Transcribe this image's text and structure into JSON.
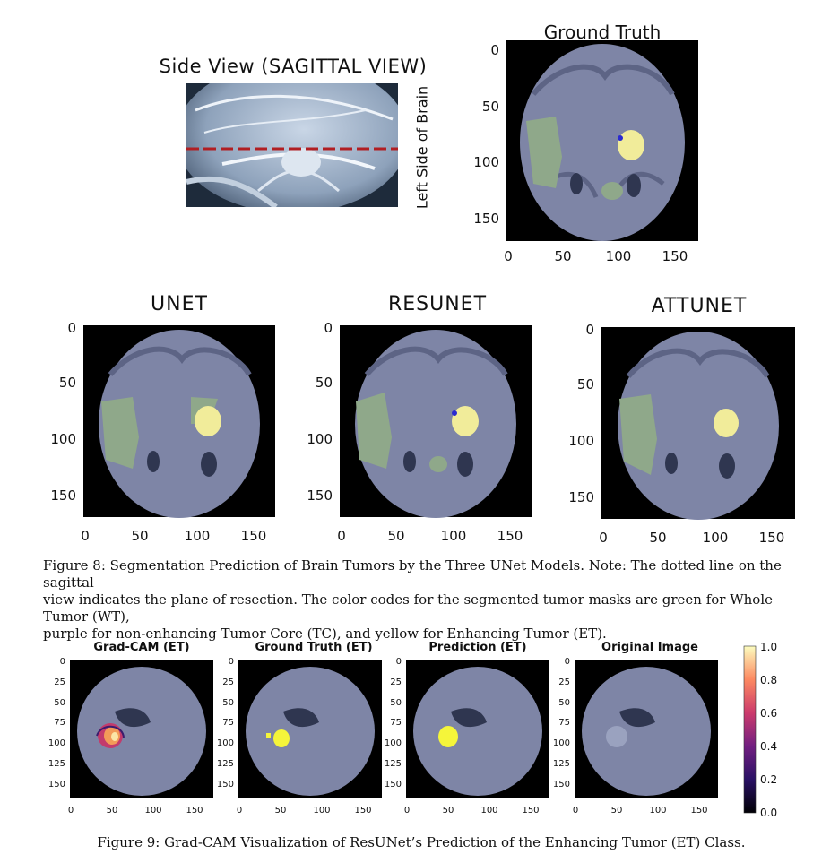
{
  "figure8": {
    "sagittal_title": "Side View (SAGITTAL VIEW)",
    "left_side_label": "Left Side of Brain",
    "ground_truth_title": "Ground Truth",
    "unet_title": "UNET",
    "resunet_title": "RESUNET",
    "attunet_title": "ATTUNET",
    "ticks": [
      "0",
      "50",
      "100",
      "150"
    ],
    "caption_line1": "Figure 8: Segmentation Prediction of Brain Tumors by the Three UNet Models. Note: The dotted line on the sagittal",
    "caption_line2": "view indicates the plane of resection. The color codes for the segmented tumor masks are green for Whole Tumor (WT),",
    "caption_line3": "purple for non-enhancing Tumor Core (TC), and yellow for Enhancing Tumor (ET)."
  },
  "figure9": {
    "gradcam_title": "Grad-CAM (ET)",
    "gt_title": "Ground Truth (ET)",
    "pred_title": "Prediction (ET)",
    "orig_title": "Original Image",
    "y_ticks": [
      "0",
      "25",
      "50",
      "75",
      "100",
      "125",
      "150"
    ],
    "x_ticks": [
      "0",
      "50",
      "100",
      "150"
    ],
    "colorbar_ticks": [
      "1.0",
      "0.8",
      "0.6",
      "0.4",
      "0.2",
      "0.0"
    ],
    "caption": "Figure 9: Grad-CAM Visualization of ResUNet’s Prediction of the Enhancing Tumor (ET) Class."
  },
  "colors": {
    "brain": "#7f86a8",
    "wt_green": "#8fa88a",
    "et_yellow": "#f1ec9a",
    "tc_purple": "#2a2ad0",
    "et_bright": "#f5f53a"
  }
}
